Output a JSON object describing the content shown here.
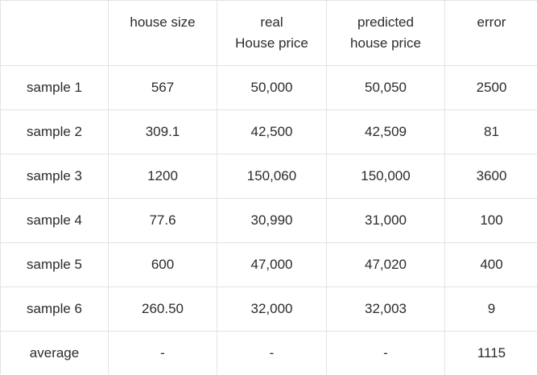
{
  "table": {
    "headers": [
      "",
      "house size",
      "real\nHouse price",
      "predicted\nhouse price",
      "error"
    ],
    "rows": [
      [
        "sample 1",
        "567",
        "50,000",
        "50,050",
        "2500"
      ],
      [
        "sample 2",
        "309.1",
        "42,500",
        "42,509",
        "81"
      ],
      [
        "sample 3",
        "1200",
        "150,060",
        "150,000",
        "3600"
      ],
      [
        "sample 4",
        "77.6",
        "30,990",
        "31,000",
        "100"
      ],
      [
        "sample 5",
        "600",
        "47,000",
        "47,020",
        "400"
      ],
      [
        "sample 6",
        "260.50",
        "32,000",
        "32,003",
        "9"
      ],
      [
        "average",
        "-",
        "-",
        "-",
        "1115"
      ]
    ]
  }
}
